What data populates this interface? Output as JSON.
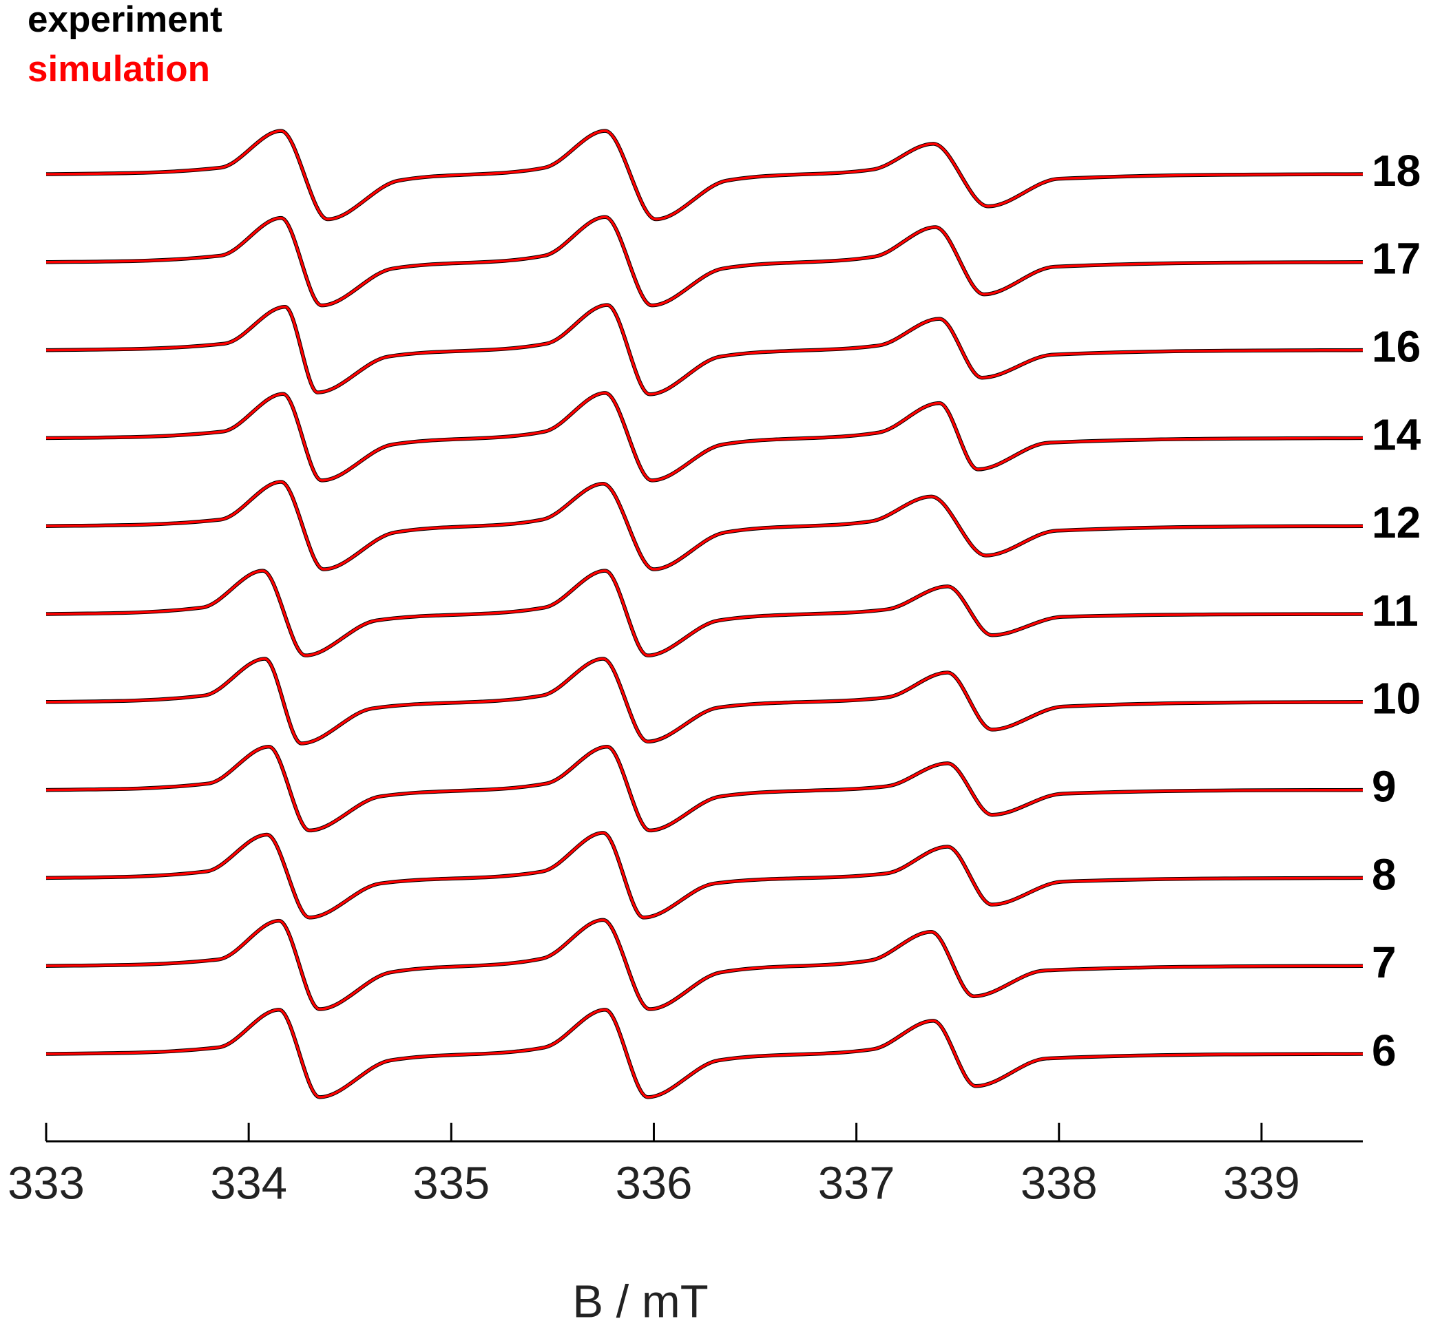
{
  "chart_data": {
    "type": "line",
    "xlabel": "B / mT",
    "xlim": [
      333,
      339.5
    ],
    "xticks": [
      333,
      334,
      335,
      336,
      337,
      338,
      339
    ],
    "series": [
      {
        "name": "experiment",
        "color": "#000000"
      },
      {
        "name": "simulation",
        "color": "#ff0000"
      }
    ],
    "traces": [
      {
        "label": "18",
        "x": [
          333,
          333.86,
          334.16,
          334.39,
          334.74,
          335.46,
          335.76,
          336.01,
          336.36,
          337.08,
          337.38,
          337.65,
          338.0,
          339.5
        ],
        "values": [
          [
            0,
            7,
            47,
            -49,
            -7,
            7,
            47,
            -49,
            -7,
            5,
            33,
            -35,
            -5,
            0
          ],
          [
            0,
            7,
            47,
            -49,
            -7,
            7,
            47,
            -49,
            -7,
            5,
            33,
            -35,
            -5,
            0
          ]
        ]
      },
      {
        "label": "17",
        "x": [
          333,
          333.86,
          334.16,
          334.36,
          334.71,
          335.46,
          335.76,
          335.99,
          336.34,
          337.09,
          337.39,
          337.63,
          337.98,
          339.5
        ],
        "values": [
          [
            0,
            7,
            48,
            -47,
            -7,
            7,
            49,
            -47,
            -7,
            6,
            38,
            -35,
            -5,
            0
          ],
          [
            0,
            7,
            48,
            -47,
            -7,
            7,
            49,
            -47,
            -7,
            6,
            38,
            -35,
            -5,
            0
          ]
        ]
      },
      {
        "label": "16",
        "x": [
          333,
          333.88,
          334.18,
          334.34,
          334.69,
          335.47,
          335.77,
          335.98,
          336.33,
          337.11,
          337.41,
          337.62,
          337.97,
          339.5
        ],
        "values": [
          [
            0,
            7,
            47,
            -46,
            -7,
            7,
            49,
            -48,
            -7,
            5,
            34,
            -30,
            -5,
            0
          ],
          [
            0,
            7,
            47,
            -46,
            -7,
            7,
            49,
            -48,
            -7,
            5,
            34,
            -30,
            -5,
            0
          ]
        ]
      },
      {
        "label": "14",
        "x": [
          333,
          333.87,
          334.17,
          334.36,
          334.71,
          335.46,
          335.76,
          335.99,
          336.34,
          337.11,
          337.41,
          337.6,
          337.95,
          339.5
        ],
        "values": [
          [
            0,
            7,
            48,
            -46,
            -7,
            7,
            49,
            -46,
            -7,
            6,
            38,
            -34,
            -5,
            0
          ],
          [
            0,
            7,
            48,
            -46,
            -7,
            7,
            49,
            -46,
            -7,
            6,
            38,
            -34,
            -5,
            0
          ]
        ]
      },
      {
        "label": "12",
        "x": [
          333,
          333.86,
          334.16,
          334.37,
          334.72,
          335.45,
          335.75,
          336.0,
          336.35,
          337.07,
          337.37,
          337.64,
          337.99,
          339.5
        ],
        "values": [
          [
            0,
            7,
            48,
            -47,
            -7,
            7,
            46,
            -47,
            -7,
            5,
            32,
            -32,
            -5,
            0
          ],
          [
            0,
            7,
            48,
            -47,
            -7,
            7,
            46,
            -47,
            -7,
            5,
            32,
            -32,
            -5,
            0
          ]
        ]
      },
      {
        "label": "11",
        "x": [
          333,
          333.77,
          334.07,
          334.28,
          334.63,
          335.46,
          335.76,
          335.97,
          336.32,
          337.15,
          337.45,
          337.67,
          338.02,
          339.5
        ],
        "values": [
          [
            0,
            7,
            47,
            -45,
            -7,
            7,
            47,
            -45,
            -7,
            5,
            30,
            -23,
            -3,
            0
          ],
          [
            0,
            7,
            47,
            -45,
            -7,
            7,
            47,
            -45,
            -7,
            5,
            30,
            -23,
            -3,
            0
          ]
        ]
      },
      {
        "label": "10",
        "x": [
          333,
          333.78,
          334.08,
          334.26,
          334.61,
          335.45,
          335.75,
          335.97,
          336.32,
          337.15,
          337.45,
          337.67,
          338.02,
          339.5
        ],
        "values": [
          [
            0,
            7,
            47,
            -45,
            -7,
            7,
            47,
            -43,
            -6,
            5,
            32,
            -30,
            -5,
            0
          ],
          [
            0,
            7,
            47,
            -45,
            -7,
            7,
            47,
            -43,
            -6,
            5,
            32,
            -30,
            -5,
            0
          ]
        ]
      },
      {
        "label": "9",
        "x": [
          333,
          333.8,
          334.1,
          334.3,
          334.65,
          335.47,
          335.77,
          335.98,
          336.33,
          337.15,
          337.45,
          337.67,
          338.02,
          339.5
        ],
        "values": [
          [
            0,
            7,
            47,
            -44,
            -7,
            7,
            47,
            -44,
            -7,
            4,
            29,
            -27,
            -4,
            0
          ],
          [
            0,
            7,
            47,
            -44,
            -7,
            7,
            47,
            -44,
            -7,
            4,
            29,
            -27,
            -4,
            0
          ]
        ]
      },
      {
        "label": "8",
        "x": [
          333,
          333.79,
          334.09,
          334.3,
          334.65,
          335.45,
          335.75,
          335.95,
          336.3,
          337.15,
          337.45,
          337.67,
          338.02,
          339.5
        ],
        "values": [
          [
            0,
            7,
            47,
            -43,
            -6,
            7,
            49,
            -43,
            -6,
            5,
            34,
            -29,
            -4,
            0
          ],
          [
            0,
            7,
            47,
            -43,
            -6,
            7,
            49,
            -43,
            -6,
            5,
            34,
            -29,
            -4,
            0
          ]
        ]
      },
      {
        "label": "7",
        "x": [
          333,
          333.85,
          334.15,
          334.35,
          334.7,
          335.45,
          335.75,
          335.98,
          336.33,
          337.07,
          337.37,
          337.58,
          337.93,
          339.5
        ],
        "values": [
          [
            0,
            7,
            49,
            -47,
            -7,
            8,
            50,
            -47,
            -7,
            6,
            37,
            -33,
            -5,
            0
          ],
          [
            0,
            7,
            49,
            -47,
            -7,
            8,
            50,
            -47,
            -7,
            6,
            37,
            -33,
            -5,
            0
          ]
        ]
      },
      {
        "label": "6",
        "x": [
          333,
          333.85,
          334.15,
          334.35,
          334.7,
          335.46,
          335.76,
          335.97,
          336.32,
          337.08,
          337.38,
          337.59,
          337.94,
          339.5
        ],
        "values": [
          [
            0,
            7,
            48,
            -47,
            -7,
            7,
            48,
            -47,
            -7,
            5,
            36,
            -35,
            -5,
            0
          ],
          [
            0,
            7,
            48,
            -47,
            -7,
            7,
            48,
            -47,
            -7,
            5,
            36,
            -35,
            -5,
            0
          ]
        ]
      }
    ]
  }
}
